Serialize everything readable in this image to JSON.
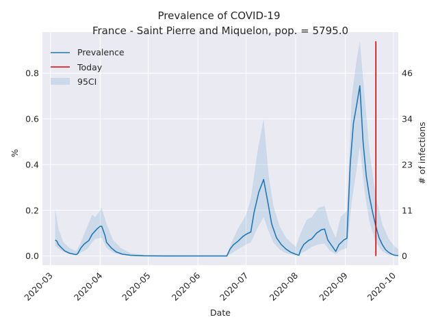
{
  "chart_data": {
    "type": "line",
    "title": "Prevalence of COVID-19",
    "subtitle": "France - Saint Pierre and Miquelon, pop. = 5795.0",
    "xlabel": "Date",
    "ylabel": "%",
    "ylabel_right": "# of infections",
    "ylim": [
      -0.04,
      0.98
    ],
    "xlim": [
      "2020-02-25",
      "2020-10-04"
    ],
    "grid": true,
    "legend_position": "top-left",
    "x_ticks": [
      "2020-03",
      "2020-04",
      "2020-05",
      "2020-06",
      "2020-07",
      "2020-08",
      "2020-09",
      "2020-10"
    ],
    "x_tick_dates": [
      "2020-03-01",
      "2020-04-01",
      "2020-05-01",
      "2020-06-01",
      "2020-07-01",
      "2020-08-01",
      "2020-09-01",
      "2020-10-01"
    ],
    "y_ticks": [
      0.0,
      0.2,
      0.4,
      0.6,
      0.8
    ],
    "y_tick_labels": [
      "0.0",
      "0.2",
      "0.4",
      "0.6",
      "0.8"
    ],
    "y_right_ticks": [
      0,
      11,
      23,
      34,
      46
    ],
    "series": [
      {
        "name": "Prevalence",
        "color": "#1f77b4",
        "points": [
          [
            "2020-03-04",
            0.07
          ],
          [
            "2020-03-05",
            0.065
          ],
          [
            "2020-03-06",
            0.05
          ],
          [
            "2020-03-08",
            0.035
          ],
          [
            "2020-03-10",
            0.022
          ],
          [
            "2020-03-13",
            0.012
          ],
          [
            "2020-03-17",
            0.006
          ],
          [
            "2020-03-18",
            0.01
          ],
          [
            "2020-03-20",
            0.035
          ],
          [
            "2020-03-22",
            0.052
          ],
          [
            "2020-03-25",
            0.068
          ],
          [
            "2020-03-27",
            0.095
          ],
          [
            "2020-03-30",
            0.118
          ],
          [
            "2020-04-01",
            0.13
          ],
          [
            "2020-04-02",
            0.13
          ],
          [
            "2020-04-04",
            0.09
          ],
          [
            "2020-04-05",
            0.06
          ],
          [
            "2020-04-08",
            0.035
          ],
          [
            "2020-04-11",
            0.018
          ],
          [
            "2020-04-15",
            0.008
          ],
          [
            "2020-04-20",
            0.003
          ],
          [
            "2020-04-28",
            0.001
          ],
          [
            "2020-05-10",
            0.0
          ],
          [
            "2020-06-01",
            0.0
          ],
          [
            "2020-06-19",
            0.0
          ],
          [
            "2020-06-21",
            0.03
          ],
          [
            "2020-06-23",
            0.048
          ],
          [
            "2020-06-26",
            0.065
          ],
          [
            "2020-06-29",
            0.085
          ],
          [
            "2020-07-01",
            0.095
          ],
          [
            "2020-07-04",
            0.105
          ],
          [
            "2020-07-06",
            0.19
          ],
          [
            "2020-07-09",
            0.28
          ],
          [
            "2020-07-12",
            0.335
          ],
          [
            "2020-07-15",
            0.22
          ],
          [
            "2020-07-17",
            0.14
          ],
          [
            "2020-07-20",
            0.08
          ],
          [
            "2020-07-23",
            0.05
          ],
          [
            "2020-07-26",
            0.03
          ],
          [
            "2020-07-29",
            0.016
          ],
          [
            "2020-08-01",
            0.008
          ],
          [
            "2020-08-03",
            0.003
          ],
          [
            "2020-08-04",
            0.025
          ],
          [
            "2020-08-06",
            0.05
          ],
          [
            "2020-08-09",
            0.068
          ],
          [
            "2020-08-11",
            0.075
          ],
          [
            "2020-08-14",
            0.1
          ],
          [
            "2020-08-17",
            0.115
          ],
          [
            "2020-08-19",
            0.118
          ],
          [
            "2020-08-21",
            0.07
          ],
          [
            "2020-08-24",
            0.04
          ],
          [
            "2020-08-26",
            0.02
          ],
          [
            "2020-08-28",
            0.05
          ],
          [
            "2020-08-31",
            0.07
          ],
          [
            "2020-09-02",
            0.078
          ],
          [
            "2020-09-04",
            0.4
          ],
          [
            "2020-09-06",
            0.58
          ],
          [
            "2020-09-08",
            0.66
          ],
          [
            "2020-09-10",
            0.745
          ],
          [
            "2020-09-12",
            0.5
          ],
          [
            "2020-09-14",
            0.35
          ],
          [
            "2020-09-16",
            0.26
          ],
          [
            "2020-09-18",
            0.19
          ],
          [
            "2020-09-20",
            0.13
          ],
          [
            "2020-09-22",
            0.08
          ],
          [
            "2020-09-24",
            0.05
          ],
          [
            "2020-09-26",
            0.028
          ],
          [
            "2020-09-28",
            0.016
          ],
          [
            "2020-09-30",
            0.008
          ],
          [
            "2020-10-02",
            0.003
          ],
          [
            "2020-10-04",
            0.002
          ]
        ]
      }
    ],
    "ci_95": {
      "name": "95CI",
      "color": "#1f77b4",
      "points": [
        [
          "2020-03-04",
          0.045,
          0.205
        ],
        [
          "2020-03-06",
          0.032,
          0.12
        ],
        [
          "2020-03-09",
          0.018,
          0.06
        ],
        [
          "2020-03-13",
          0.008,
          0.035
        ],
        [
          "2020-03-17",
          0.003,
          0.02
        ],
        [
          "2020-03-20",
          0.015,
          0.06
        ],
        [
          "2020-03-24",
          0.03,
          0.13
        ],
        [
          "2020-03-27",
          0.06,
          0.18
        ],
        [
          "2020-03-29",
          0.075,
          0.17
        ],
        [
          "2020-04-02",
          0.08,
          0.21
        ],
        [
          "2020-04-05",
          0.035,
          0.14
        ],
        [
          "2020-04-09",
          0.015,
          0.07
        ],
        [
          "2020-04-14",
          0.005,
          0.035
        ],
        [
          "2020-04-20",
          0.001,
          0.012
        ],
        [
          "2020-05-01",
          0.0,
          0.003
        ],
        [
          "2020-06-19",
          0.0,
          0.0
        ],
        [
          "2020-06-22",
          0.012,
          0.06
        ],
        [
          "2020-06-26",
          0.03,
          0.12
        ],
        [
          "2020-07-01",
          0.05,
          0.18
        ],
        [
          "2020-07-04",
          0.06,
          0.25
        ],
        [
          "2020-07-08",
          0.12,
          0.45
        ],
        [
          "2020-07-12",
          0.17,
          0.6
        ],
        [
          "2020-07-15",
          0.11,
          0.36
        ],
        [
          "2020-07-18",
          0.06,
          0.22
        ],
        [
          "2020-07-22",
          0.028,
          0.13
        ],
        [
          "2020-07-26",
          0.012,
          0.08
        ],
        [
          "2020-08-01",
          0.002,
          0.04
        ],
        [
          "2020-08-04",
          0.01,
          0.1
        ],
        [
          "2020-08-08",
          0.025,
          0.16
        ],
        [
          "2020-08-11",
          0.04,
          0.17
        ],
        [
          "2020-08-15",
          0.05,
          0.21
        ],
        [
          "2020-08-19",
          0.055,
          0.22
        ],
        [
          "2020-08-22",
          0.025,
          0.14
        ],
        [
          "2020-08-26",
          0.008,
          0.08
        ],
        [
          "2020-08-29",
          0.025,
          0.17
        ],
        [
          "2020-09-02",
          0.035,
          0.2
        ],
        [
          "2020-09-05",
          0.24,
          0.7
        ],
        [
          "2020-09-08",
          0.38,
          0.86
        ],
        [
          "2020-09-10",
          0.48,
          0.94
        ],
        [
          "2020-09-13",
          0.28,
          0.7
        ],
        [
          "2020-09-16",
          0.15,
          0.46
        ],
        [
          "2020-09-20",
          0.06,
          0.26
        ],
        [
          "2020-09-24",
          0.02,
          0.14
        ],
        [
          "2020-09-28",
          0.005,
          0.075
        ],
        [
          "2020-10-02",
          0.001,
          0.04
        ],
        [
          "2020-10-04",
          0.0,
          0.03
        ]
      ]
    },
    "today": {
      "name": "Today",
      "color": "#e00000",
      "date": "2020-09-20",
      "y_range": [
        0.0,
        0.94
      ]
    }
  }
}
